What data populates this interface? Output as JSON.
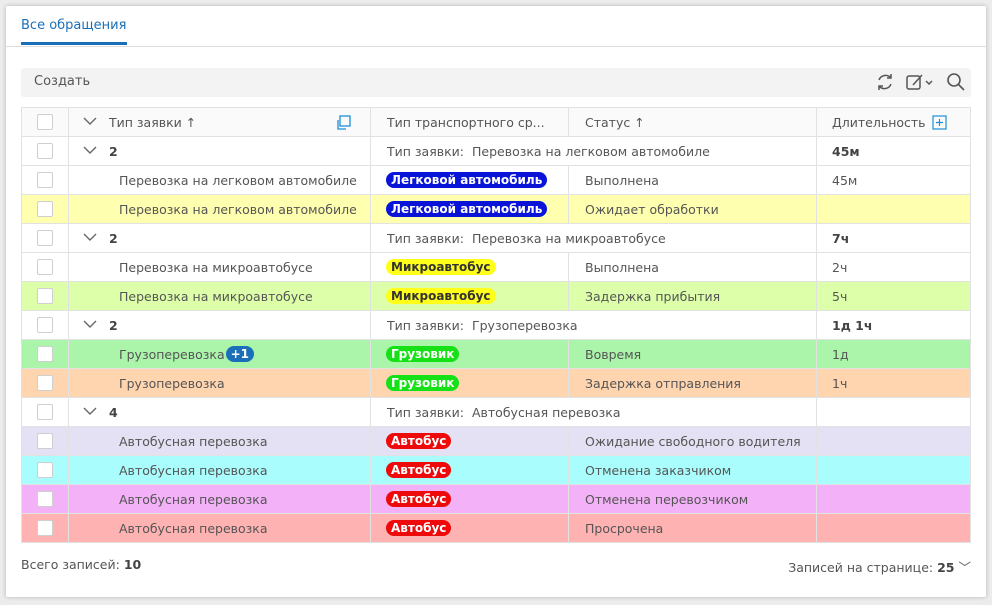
{
  "tab": "Все обращения",
  "toolbar": {
    "create": "Создать"
  },
  "table": {
    "columns": [
      "Тип заявки",
      "Тип транспортного ср...",
      "Статус",
      "Длительность"
    ],
    "groups": [
      {
        "count": 2,
        "label": "Тип заявки:",
        "value": "Перевозка на легковом автомобиле",
        "duration": "45м",
        "rows": [
          {
            "type": "Перевозка на легковом автомобиле",
            "vehicle": "Легковой автомобиль",
            "vehicle_color": "#0a14d8",
            "vehicle_text_color": "#ffffff",
            "status": "Выполнена",
            "duration": "45м",
            "color": "#ffffff"
          },
          {
            "type": "Перевозка на легковом автомобиле",
            "vehicle": "Легковой автомобиль",
            "vehicle_color": "#0a14d8",
            "vehicle_text_color": "#ffffff",
            "status": "Ожидает обработки",
            "color": "#ffffb0"
          }
        ]
      },
      {
        "count": 2,
        "label": "Тип заявки:",
        "value": "Перевозка на микроавтобусе",
        "duration": "7ч",
        "rows": [
          {
            "type": "Перевозка на микроавтобусе",
            "vehicle": "Микроавтобус",
            "vehicle_color": "#ffff1a",
            "vehicle_text_color": "#333333",
            "status": "Выполнена",
            "duration": "2ч",
            "color": "#ffffff"
          },
          {
            "type": "Перевозка на микроавтобусе",
            "vehicle": "Микроавтобус",
            "vehicle_color": "#ffff1a",
            "vehicle_text_color": "#333333",
            "status": "Задержка прибытия",
            "duration": "5ч",
            "color": "#ddffaa"
          }
        ]
      },
      {
        "count": 2,
        "label": "Тип заявки:",
        "value": "Грузоперевозка",
        "duration": "1д 1ч",
        "rows": [
          {
            "type": "Грузоперевозка",
            "extra": "+1",
            "vehicle": "Грузовик",
            "vehicle_color": "#16e016",
            "vehicle_text_color": "#ffffff",
            "status": "Вовремя",
            "duration": "1д",
            "color": "#aaf5aa"
          },
          {
            "type": "Грузоперевозка",
            "vehicle": "Грузовик",
            "vehicle_color": "#16e016",
            "vehicle_text_color": "#ffffff",
            "status": "Задержка отправления",
            "duration": "1ч",
            "color": "#ffd5b0"
          }
        ]
      },
      {
        "count": 4,
        "label": "Тип заявки:",
        "value": "Автобусная перевозка",
        "rows": [
          {
            "type": "Автобусная перевозка",
            "vehicle": "Автобус",
            "vehicle_color": "#ee0a0a",
            "vehicle_text_color": "#ffffff",
            "status": "Ожидание свободного водителя",
            "color": "#e3e1f3"
          },
          {
            "type": "Автобусная перевозка",
            "vehicle": "Автобус",
            "vehicle_color": "#ee0a0a",
            "vehicle_text_color": "#ffffff",
            "status": "Отменена заказчиком",
            "color": "#aafdfd"
          },
          {
            "type": "Автобусная перевозка",
            "vehicle": "Автобус",
            "vehicle_color": "#ee0a0a",
            "vehicle_text_color": "#ffffff",
            "status": "Отменена перевозчиком",
            "color": "#f3b2f7"
          },
          {
            "type": "Автобусная перевозка",
            "vehicle": "Автобус",
            "vehicle_color": "#ee0a0a",
            "vehicle_text_color": "#ffffff",
            "status": "Просрочена",
            "color": "#ffb2b2"
          }
        ]
      }
    ]
  },
  "footer": {
    "total_label": "Всего записей:",
    "total": 10,
    "per_page_label": "Записей на странице:",
    "per_page": 25
  }
}
